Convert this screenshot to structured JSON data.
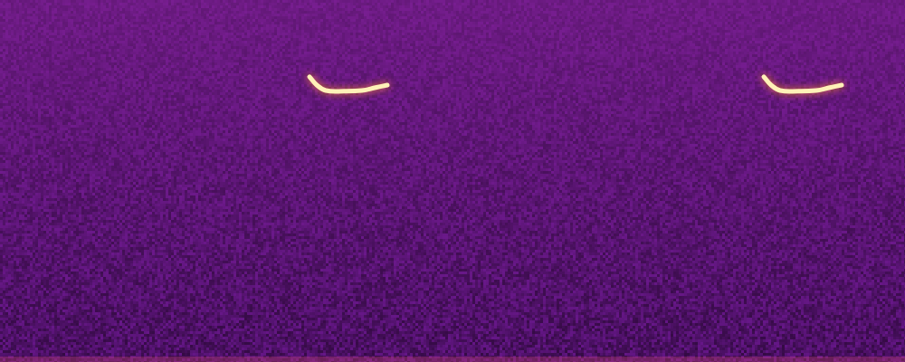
{
  "chart_data": {
    "type": "line",
    "x": [
      34.2,
      35.0,
      36.0,
      38.0,
      40.0,
      41.5,
      42.8,
      60.0,
      84.4,
      85.2,
      86.2,
      88.2,
      90.2,
      91.7,
      93.0
    ],
    "values": [
      78.8,
      76.5,
      75.0,
      74.8,
      75.0,
      75.8,
      76.5,
      null,
      78.8,
      76.5,
      75.0,
      74.8,
      75.0,
      75.8,
      76.5
    ],
    "color": "#fff1b8",
    "xlim": [
      0,
      100
    ],
    "ylim": [
      0,
      100
    ],
    "grid": false,
    "tick_labels": false
  }
}
